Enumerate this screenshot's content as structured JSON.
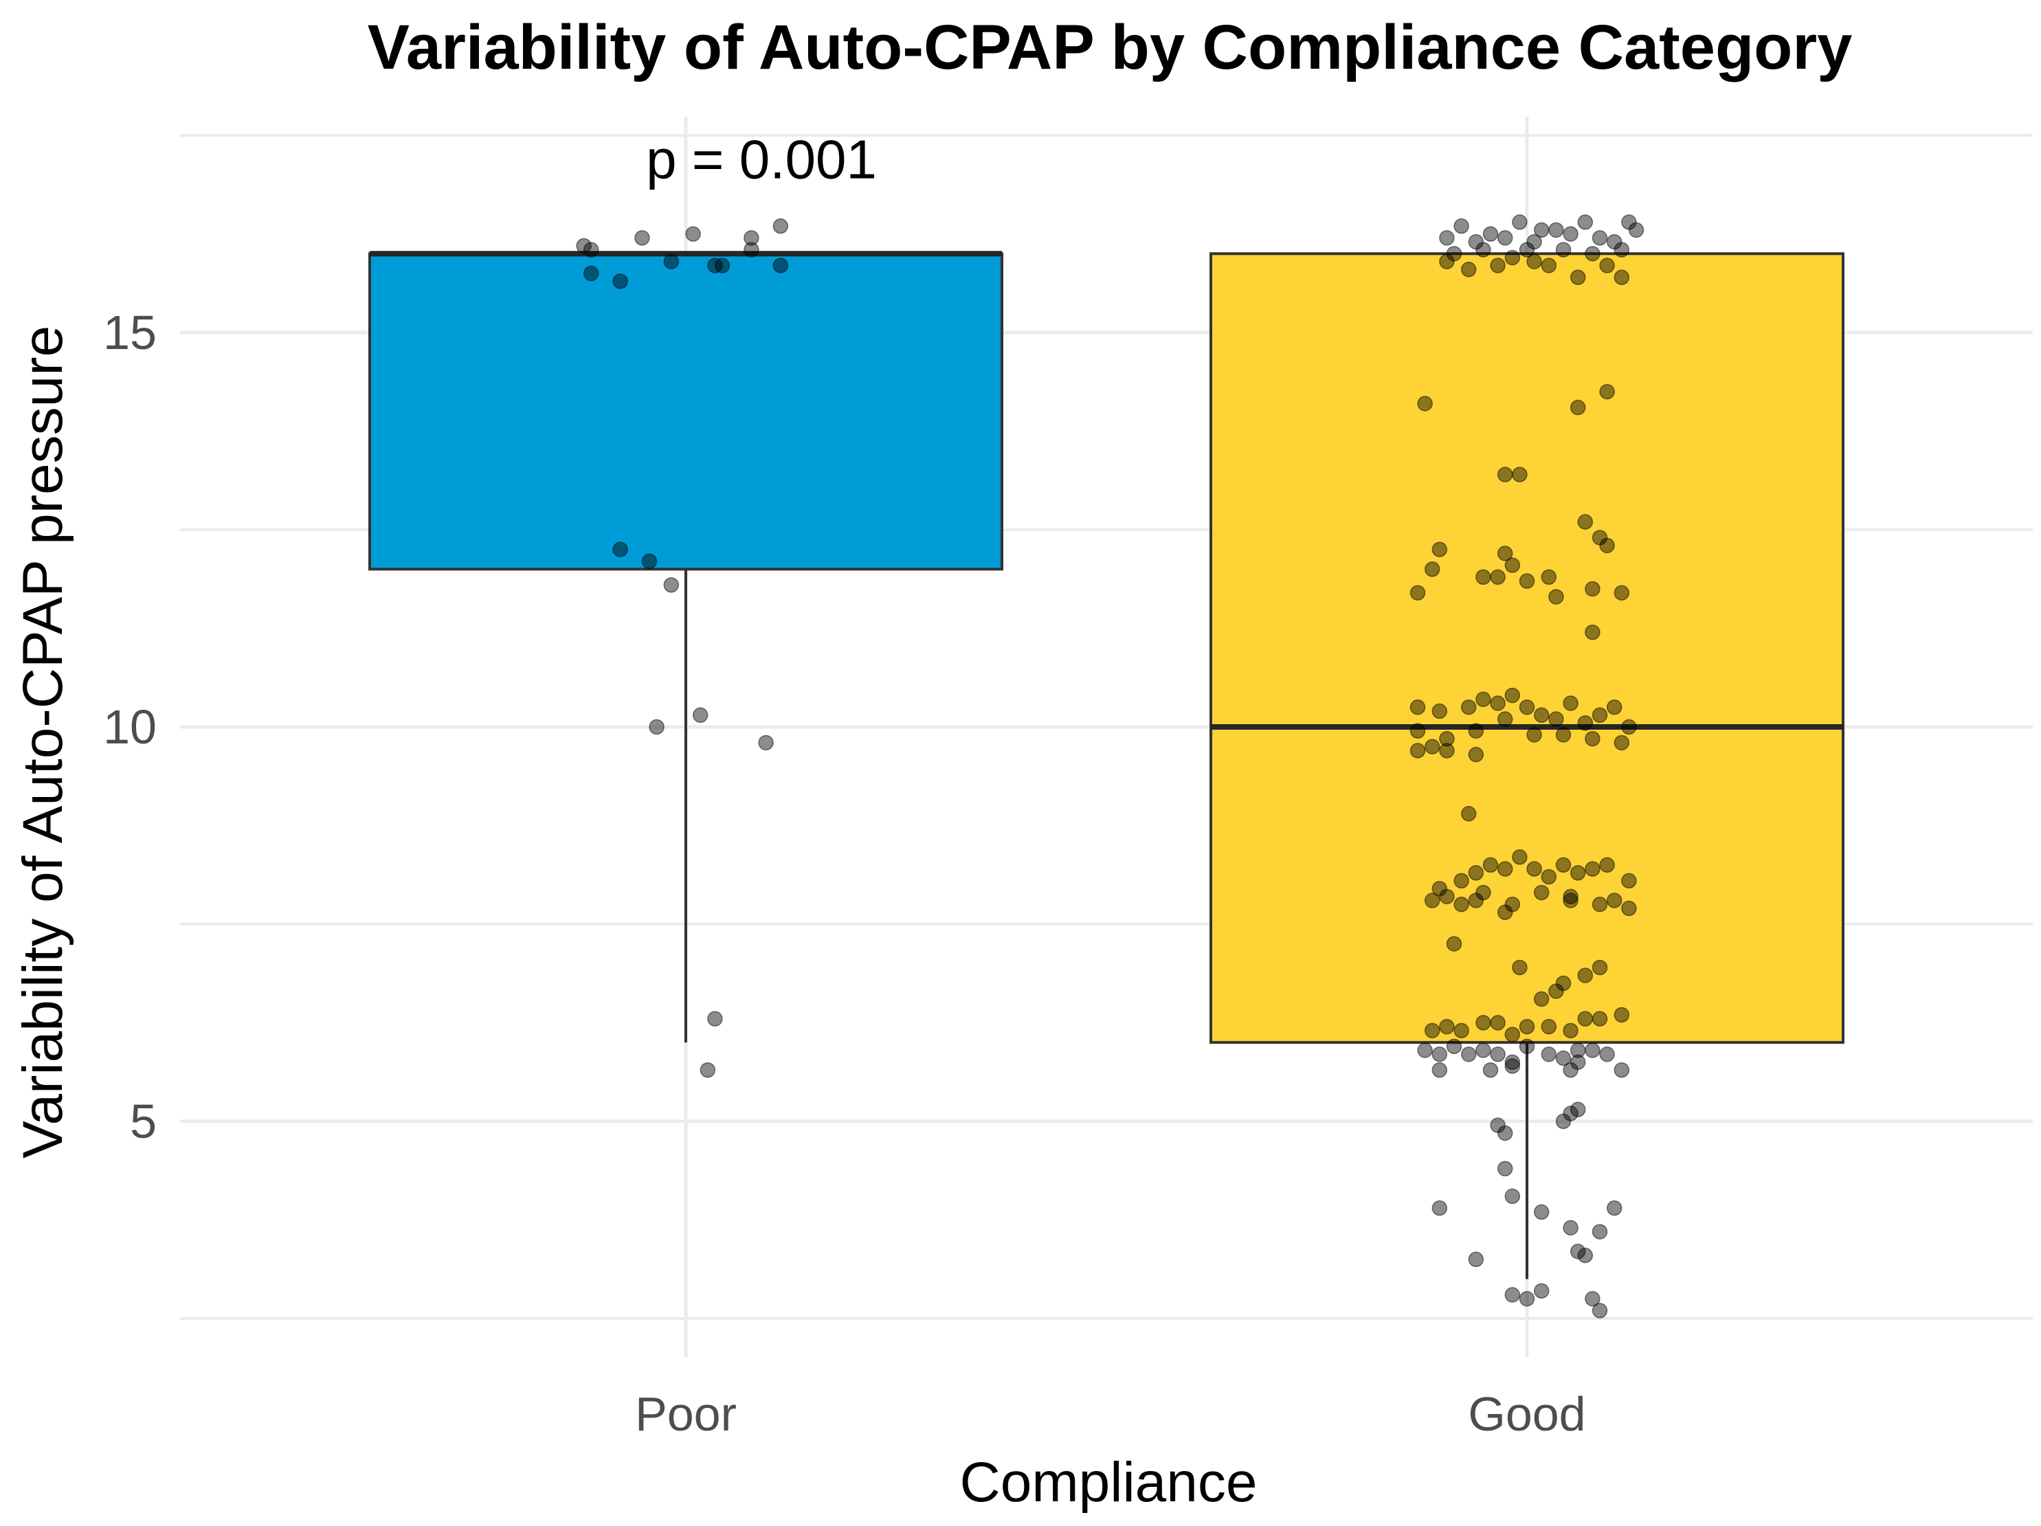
{
  "chart_data": {
    "type": "box",
    "title": "Variability of Auto-CPAP by Compliance Category",
    "xlabel": "Compliance",
    "ylabel": "Variability of Auto-CPAP pressure",
    "ylim": [
      2.4,
      18.0
    ],
    "yticks": [
      5,
      10,
      15
    ],
    "grid": true,
    "categories": [
      "Poor",
      "Good"
    ],
    "annotation": {
      "text": "p = 0.001",
      "category": "Poor",
      "y": 17.2
    },
    "boxes": [
      {
        "category": "Poor",
        "color": "#009CD8",
        "whisker_low": 6.0,
        "q1": 12.0,
        "median": 16.0,
        "q3": 16.0,
        "whisker_high": 16.0,
        "points": [
          [
            -0.14,
            16.1
          ],
          [
            -0.13,
            16.05
          ],
          [
            -0.06,
            16.2
          ],
          [
            0.01,
            16.25
          ],
          [
            0.09,
            16.2
          ],
          [
            0.13,
            16.35
          ],
          [
            -0.13,
            15.75
          ],
          [
            -0.09,
            15.65
          ],
          [
            -0.02,
            15.9
          ],
          [
            0.04,
            15.85
          ],
          [
            0.05,
            15.85
          ],
          [
            0.09,
            16.05
          ],
          [
            0.13,
            15.85
          ],
          [
            -0.09,
            12.25
          ],
          [
            -0.05,
            12.1
          ],
          [
            -0.02,
            11.8
          ],
          [
            -0.04,
            10.0
          ],
          [
            0.02,
            10.15
          ],
          [
            0.11,
            9.8
          ],
          [
            0.04,
            6.3
          ],
          [
            0.03,
            5.65
          ]
        ]
      },
      {
        "category": "Good",
        "color": "#FDD335",
        "whisker_low": 3.0,
        "q1": 6.0,
        "median": 10.0,
        "q3": 16.0,
        "whisker_high": 16.0,
        "points": [
          [
            -0.11,
            16.2
          ],
          [
            -0.09,
            16.35
          ],
          [
            -0.07,
            16.15
          ],
          [
            -0.05,
            16.25
          ],
          [
            -0.03,
            16.2
          ],
          [
            -0.01,
            16.4
          ],
          [
            0.01,
            16.15
          ],
          [
            0.02,
            16.3
          ],
          [
            0.04,
            16.3
          ],
          [
            0.06,
            16.25
          ],
          [
            0.08,
            16.4
          ],
          [
            0.1,
            16.2
          ],
          [
            0.12,
            16.15
          ],
          [
            0.14,
            16.4
          ],
          [
            0.15,
            16.3
          ],
          [
            -0.1,
            16.0
          ],
          [
            -0.06,
            16.05
          ],
          [
            0.0,
            16.05
          ],
          [
            0.05,
            16.05
          ],
          [
            0.09,
            16.0
          ],
          [
            0.13,
            16.05
          ],
          [
            -0.11,
            15.9
          ],
          [
            -0.08,
            15.8
          ],
          [
            -0.04,
            15.85
          ],
          [
            -0.02,
            15.95
          ],
          [
            0.01,
            15.9
          ],
          [
            0.03,
            15.85
          ],
          [
            0.07,
            15.7
          ],
          [
            0.11,
            15.85
          ],
          [
            0.13,
            15.7
          ],
          [
            -0.14,
            14.1
          ],
          [
            0.07,
            14.05
          ],
          [
            0.11,
            14.25
          ],
          [
            -0.03,
            13.2
          ],
          [
            -0.01,
            13.2
          ],
          [
            -0.12,
            12.25
          ],
          [
            -0.03,
            12.2
          ],
          [
            0.08,
            12.6
          ],
          [
            0.1,
            12.4
          ],
          [
            0.11,
            12.3
          ],
          [
            -0.15,
            11.7
          ],
          [
            -0.13,
            12.0
          ],
          [
            -0.06,
            11.9
          ],
          [
            -0.04,
            11.9
          ],
          [
            -0.02,
            12.05
          ],
          [
            0.0,
            11.85
          ],
          [
            0.03,
            11.9
          ],
          [
            0.04,
            11.65
          ],
          [
            0.09,
            11.75
          ],
          [
            0.13,
            11.7
          ],
          [
            0.09,
            11.2
          ],
          [
            -0.15,
            10.25
          ],
          [
            -0.12,
            10.2
          ],
          [
            -0.08,
            10.25
          ],
          [
            -0.06,
            10.35
          ],
          [
            -0.04,
            10.3
          ],
          [
            -0.02,
            10.4
          ],
          [
            0.0,
            10.25
          ],
          [
            0.02,
            10.15
          ],
          [
            0.04,
            10.1
          ],
          [
            0.06,
            10.3
          ],
          [
            0.08,
            10.05
          ],
          [
            0.1,
            10.15
          ],
          [
            0.12,
            10.25
          ],
          [
            0.14,
            10.0
          ],
          [
            -0.15,
            9.95
          ],
          [
            -0.11,
            9.85
          ],
          [
            -0.07,
            9.95
          ],
          [
            -0.03,
            10.1
          ],
          [
            0.01,
            9.9
          ],
          [
            0.05,
            9.9
          ],
          [
            0.09,
            9.85
          ],
          [
            0.13,
            9.8
          ],
          [
            -0.15,
            9.7
          ],
          [
            -0.13,
            9.75
          ],
          [
            -0.11,
            9.7
          ],
          [
            -0.07,
            9.65
          ],
          [
            -0.08,
            8.9
          ],
          [
            -0.12,
            7.95
          ],
          [
            -0.11,
            7.85
          ],
          [
            -0.09,
            8.05
          ],
          [
            -0.07,
            8.15
          ],
          [
            -0.05,
            8.25
          ],
          [
            -0.03,
            8.2
          ],
          [
            -0.01,
            8.35
          ],
          [
            0.01,
            8.2
          ],
          [
            0.03,
            8.1
          ],
          [
            0.05,
            8.25
          ],
          [
            0.07,
            8.15
          ],
          [
            0.09,
            8.2
          ],
          [
            0.11,
            8.25
          ],
          [
            0.14,
            8.05
          ],
          [
            -0.13,
            7.8
          ],
          [
            -0.09,
            7.75
          ],
          [
            -0.06,
            7.9
          ],
          [
            -0.02,
            7.75
          ],
          [
            0.02,
            7.9
          ],
          [
            0.06,
            7.85
          ],
          [
            0.1,
            7.75
          ],
          [
            0.14,
            7.7
          ],
          [
            -0.07,
            7.8
          ],
          [
            -0.03,
            7.65
          ],
          [
            0.12,
            7.8
          ],
          [
            0.06,
            7.8
          ],
          [
            -0.1,
            7.25
          ],
          [
            -0.01,
            6.95
          ],
          [
            0.05,
            6.75
          ],
          [
            0.08,
            6.85
          ],
          [
            0.1,
            6.95
          ],
          [
            0.02,
            6.55
          ],
          [
            0.04,
            6.65
          ],
          [
            -0.13,
            6.15
          ],
          [
            -0.11,
            6.2
          ],
          [
            -0.09,
            6.15
          ],
          [
            -0.06,
            6.25
          ],
          [
            -0.04,
            6.25
          ],
          [
            -0.02,
            6.1
          ],
          [
            0.0,
            6.2
          ],
          [
            0.03,
            6.2
          ],
          [
            0.06,
            6.15
          ],
          [
            0.08,
            6.3
          ],
          [
            0.1,
            6.3
          ],
          [
            0.13,
            6.35
          ],
          [
            -0.14,
            5.9
          ],
          [
            -0.12,
            5.85
          ],
          [
            -0.1,
            5.95
          ],
          [
            -0.08,
            5.85
          ],
          [
            -0.06,
            5.9
          ],
          [
            -0.04,
            5.85
          ],
          [
            -0.02,
            5.75
          ],
          [
            0.0,
            5.95
          ],
          [
            0.03,
            5.85
          ],
          [
            0.05,
            5.8
          ],
          [
            0.07,
            5.9
          ],
          [
            0.09,
            5.9
          ],
          [
            0.11,
            5.85
          ],
          [
            0.13,
            5.65
          ],
          [
            -0.12,
            5.65
          ],
          [
            -0.05,
            5.65
          ],
          [
            -0.02,
            5.7
          ],
          [
            0.06,
            5.65
          ],
          [
            0.07,
            5.75
          ],
          [
            -0.04,
            4.95
          ],
          [
            -0.03,
            4.85
          ],
          [
            0.06,
            5.1
          ],
          [
            0.05,
            5.0
          ],
          [
            0.07,
            5.15
          ],
          [
            -0.03,
            4.4
          ],
          [
            -0.02,
            4.05
          ],
          [
            0.02,
            3.85
          ],
          [
            -0.12,
            3.9
          ],
          [
            0.06,
            3.65
          ],
          [
            0.1,
            3.6
          ],
          [
            0.12,
            3.9
          ],
          [
            0.07,
            3.35
          ],
          [
            0.08,
            3.3
          ],
          [
            -0.07,
            3.25
          ],
          [
            -0.02,
            2.8
          ],
          [
            0.0,
            2.75
          ],
          [
            0.02,
            2.85
          ],
          [
            0.09,
            2.75
          ],
          [
            0.1,
            2.6
          ]
        ]
      }
    ]
  }
}
